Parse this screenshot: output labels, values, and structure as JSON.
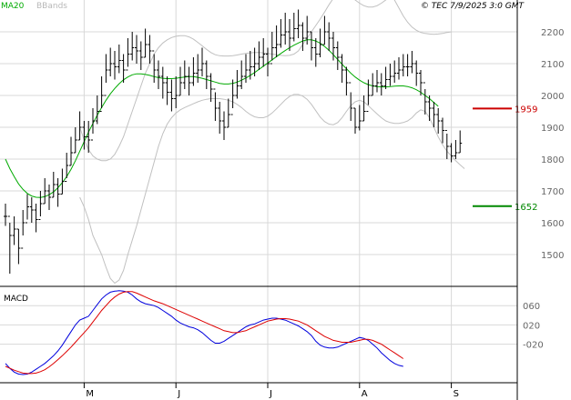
{
  "header": {
    "ma_label": "MA20",
    "bb_label": "BBands",
    "source": "© TEC 7/9/2025 3:0 GMT"
  },
  "colors": {
    "price": "#000000",
    "ma": "#00aa00",
    "bbands": "#c0c0c0",
    "macd": "#0000dd",
    "signal": "#dd0000",
    "resistance": "#cc0000",
    "support": "#008800",
    "grid": "#d8d8d8",
    "axis_text": "#666666"
  },
  "chart_data": [
    {
      "type": "ohlc",
      "ylim": [
        1400,
        2300
      ],
      "y_ticks": [
        1500,
        1600,
        1700,
        1800,
        1900,
        2000,
        2100,
        2200
      ],
      "x_labels": [
        "M",
        "J",
        "J",
        "A",
        "S"
      ],
      "x_label_index": [
        18,
        39,
        60,
        81,
        102
      ],
      "grid": true,
      "levels": [
        {
          "name": "resistance",
          "value": 1959,
          "label": "1959"
        },
        {
          "name": "support",
          "value": 1652,
          "label": "1652"
        }
      ],
      "series": [
        {
          "name": "price",
          "close": [
            1620,
            1560,
            1580,
            1520,
            1600,
            1650,
            1640,
            1610,
            1660,
            1700,
            1680,
            1720,
            1690,
            1730,
            1780,
            1820,
            1860,
            1900,
            1870,
            1860,
            1920,
            1950,
            2000,
            2080,
            2100,
            2090,
            2110,
            2080,
            2130,
            2150,
            2140,
            2120,
            2160,
            2140,
            2080,
            2060,
            2040,
            2010,
            1990,
            2000,
            2040,
            2060,
            2040,
            2070,
            2080,
            2100,
            2060,
            2020,
            1960,
            1920,
            1900,
            1940,
            2000,
            2030,
            2060,
            2080,
            2090,
            2100,
            2120,
            2130,
            2100,
            2150,
            2160,
            2190,
            2200,
            2180,
            2210,
            2220,
            2180,
            2200,
            2150,
            2130,
            2160,
            2200,
            2180,
            2150,
            2120,
            2080,
            2040,
            1960,
            1900,
            1920,
            1950,
            2000,
            2030,
            2040,
            2030,
            2050,
            2060,
            2070,
            2080,
            2090,
            2090,
            2100,
            2070,
            2040,
            1980,
            1960,
            1940,
            1920,
            1890,
            1840,
            1810,
            1820,
            1850
          ],
          "high": [
            1660,
            1600,
            1620,
            1580,
            1640,
            1690,
            1680,
            1660,
            1700,
            1740,
            1720,
            1760,
            1740,
            1770,
            1820,
            1870,
            1900,
            1950,
            1920,
            1920,
            1960,
            2000,
            2060,
            2130,
            2150,
            2140,
            2160,
            2130,
            2180,
            2200,
            2190,
            2170,
            2210,
            2190,
            2130,
            2110,
            2090,
            2060,
            2050,
            2060,
            2090,
            2110,
            2090,
            2120,
            2130,
            2150,
            2110,
            2070,
            2010,
            1980,
            1950,
            1990,
            2050,
            2080,
            2110,
            2130,
            2140,
            2150,
            2170,
            2180,
            2150,
            2200,
            2220,
            2240,
            2260,
            2240,
            2260,
            2270,
            2230,
            2250,
            2200,
            2180,
            2210,
            2250,
            2230,
            2200,
            2170,
            2130,
            2090,
            2010,
            1960,
            1970,
            2000,
            2050,
            2070,
            2080,
            2070,
            2090,
            2100,
            2110,
            2120,
            2130,
            2130,
            2140,
            2110,
            2080,
            2020,
            2000,
            1980,
            1960,
            1930,
            1880,
            1850,
            1860,
            1890
          ],
          "low": [
            1590,
            1440,
            1530,
            1470,
            1560,
            1610,
            1600,
            1570,
            1620,
            1660,
            1640,
            1680,
            1650,
            1690,
            1740,
            1780,
            1820,
            1860,
            1830,
            1820,
            1880,
            1910,
            1960,
            2040,
            2060,
            2050,
            2070,
            2040,
            2090,
            2110,
            2100,
            2080,
            2120,
            2100,
            2040,
            2020,
            1990,
            1970,
            1950,
            1960,
            2000,
            2020,
            2000,
            2030,
            2040,
            2060,
            2020,
            1980,
            1920,
            1880,
            1860,
            1900,
            1960,
            1990,
            2020,
            2040,
            2050,
            2060,
            2080,
            2090,
            2060,
            2110,
            2120,
            2150,
            2160,
            2140,
            2170,
            2180,
            2140,
            2160,
            2110,
            2090,
            2120,
            2160,
            2140,
            2110,
            2080,
            2040,
            2000,
            1920,
            1880,
            1890,
            1920,
            1970,
            2000,
            2010,
            2000,
            2020,
            2030,
            2040,
            2050,
            2060,
            2060,
            2070,
            2030,
            2000,
            1940,
            1920,
            1900,
            1880,
            1850,
            1800,
            1790,
            1800,
            1820
          ]
        },
        {
          "name": "MA20",
          "values": [
            1800,
            1770,
            1745,
            1722,
            1705,
            1692,
            1684,
            1680,
            1679,
            1682,
            1688,
            1697,
            1710,
            1726,
            1745,
            1768,
            1795,
            1825,
            1855,
            1885,
            1912,
            1938,
            1962,
            1985,
            2005,
            2022,
            2037,
            2049,
            2058,
            2065,
            2068,
            2068,
            2066,
            2063,
            2059,
            2056,
            2054,
            2053,
            2053,
            2054,
            2056,
            2058,
            2059,
            2059,
            2057,
            2054,
            2050,
            2046,
            2042,
            2038,
            2036,
            2036,
            2038,
            2042,
            2048,
            2055,
            2063,
            2072,
            2082,
            2092,
            2102,
            2112,
            2122,
            2132,
            2141,
            2150,
            2158,
            2165,
            2171,
            2175,
            2175,
            2171,
            2164,
            2154,
            2142,
            2128,
            2113,
            2098,
            2084,
            2070,
            2058,
            2048,
            2040,
            2034,
            2030,
            2028,
            2027,
            2027,
            2028,
            2029,
            2030,
            2030,
            2028,
            2024,
            2018,
            2010,
            2000,
            1990,
            1978,
            1966
          ]
        },
        {
          "name": "BBands upper",
          "values": [
            1900,
            1860,
            1830,
            1810,
            1800,
            1795,
            1795,
            1800,
            1815,
            1840,
            1870,
            1910,
            1950,
            1990,
            2030,
            2070,
            2100,
            2130,
            2150,
            2165,
            2175,
            2182,
            2186,
            2188,
            2188,
            2184,
            2177,
            2167,
            2156,
            2145,
            2135,
            2128,
            2125,
            2124,
            2124,
            2125,
            2127,
            2130,
            2132,
            2134,
            2135,
            2135,
            2134,
            2132,
            2130,
            2128,
            2126,
            2125,
            2126,
            2130,
            2140,
            2160,
            2180,
            2200,
            2220,
            2240,
            2262,
            2285,
            2305,
            2318,
            2324,
            2322,
            2312,
            2300,
            2290,
            2282,
            2278,
            2278,
            2282,
            2290,
            2300,
            2310,
            2300,
            2275,
            2250,
            2230,
            2215,
            2205,
            2198,
            2195,
            2193,
            2192,
            2193,
            2195,
            2198,
            2200
          ]
        },
        {
          "name": "BBands lower",
          "values": [
            1680,
            1650,
            1610,
            1560,
            1530,
            1500,
            1460,
            1425,
            1410,
            1420,
            1450,
            1500,
            1545,
            1590,
            1640,
            1690,
            1740,
            1790,
            1840,
            1880,
            1910,
            1930,
            1945,
            1955,
            1962,
            1968,
            1974,
            1980,
            1985,
            1988,
            1990,
            1990,
            1990,
            1988,
            1985,
            1980,
            1972,
            1962,
            1950,
            1940,
            1933,
            1930,
            1930,
            1935,
            1945,
            1958,
            1972,
            1986,
            1997,
            2003,
            2003,
            1998,
            1988,
            1972,
            1952,
            1932,
            1918,
            1910,
            1908,
            1915,
            1930,
            1950,
            1968,
            1980,
            1985,
            1980,
            1968,
            1955,
            1942,
            1930,
            1920,
            1915,
            1912,
            1912,
            1915,
            1920,
            1930,
            1945,
            1955,
            1950,
            1930,
            1900,
            1870,
            1845,
            1825,
            1810,
            1795,
            1782,
            1770
          ]
        }
      ]
    },
    {
      "type": "line",
      "title": "MACD",
      "ylim": [
        -100,
        100
      ],
      "y_ticks": [
        -20,
        20,
        60
      ],
      "y_tick_labels": [
        "-020",
        "020",
        "060"
      ],
      "grid": true,
      "series": [
        {
          "name": "macd",
          "values": [
            -60,
            -70,
            -78,
            -82,
            -83,
            -82,
            -78,
            -72,
            -66,
            -60,
            -52,
            -44,
            -34,
            -22,
            -8,
            6,
            20,
            30,
            34,
            38,
            50,
            62,
            74,
            82,
            88,
            90,
            91,
            90,
            88,
            82,
            74,
            68,
            64,
            62,
            60,
            56,
            50,
            44,
            38,
            30,
            24,
            20,
            16,
            14,
            10,
            4,
            -4,
            -12,
            -18,
            -18,
            -14,
            -8,
            -2,
            4,
            10,
            16,
            20,
            22,
            26,
            30,
            32,
            34,
            34,
            32,
            30,
            26,
            22,
            18,
            12,
            6,
            -2,
            -14,
            -22,
            -26,
            -28,
            -28,
            -26,
            -22,
            -18,
            -14,
            -10,
            -6,
            -8,
            -12,
            -20,
            -28,
            -38,
            -46,
            -54,
            -60,
            -64,
            -66
          ]
        },
        {
          "name": "signal",
          "values": [
            -66,
            -70,
            -74,
            -77,
            -80,
            -81,
            -81,
            -80,
            -77,
            -73,
            -67,
            -60,
            -52,
            -44,
            -35,
            -26,
            -16,
            -6,
            4,
            14,
            26,
            38,
            50,
            60,
            70,
            78,
            84,
            88,
            89,
            89,
            86,
            82,
            78,
            74,
            70,
            67,
            64,
            60,
            56,
            52,
            48,
            44,
            40,
            36,
            32,
            28,
            24,
            20,
            16,
            12,
            8,
            6,
            4,
            4,
            6,
            8,
            12,
            16,
            20,
            24,
            28,
            30,
            32,
            33,
            33,
            32,
            30,
            28,
            24,
            20,
            14,
            8,
            2,
            -4,
            -8,
            -12,
            -14,
            -16,
            -16,
            -16,
            -14,
            -12,
            -10,
            -10,
            -12,
            -16,
            -20,
            -26,
            -32,
            -38,
            -44,
            -50
          ]
        }
      ]
    }
  ]
}
